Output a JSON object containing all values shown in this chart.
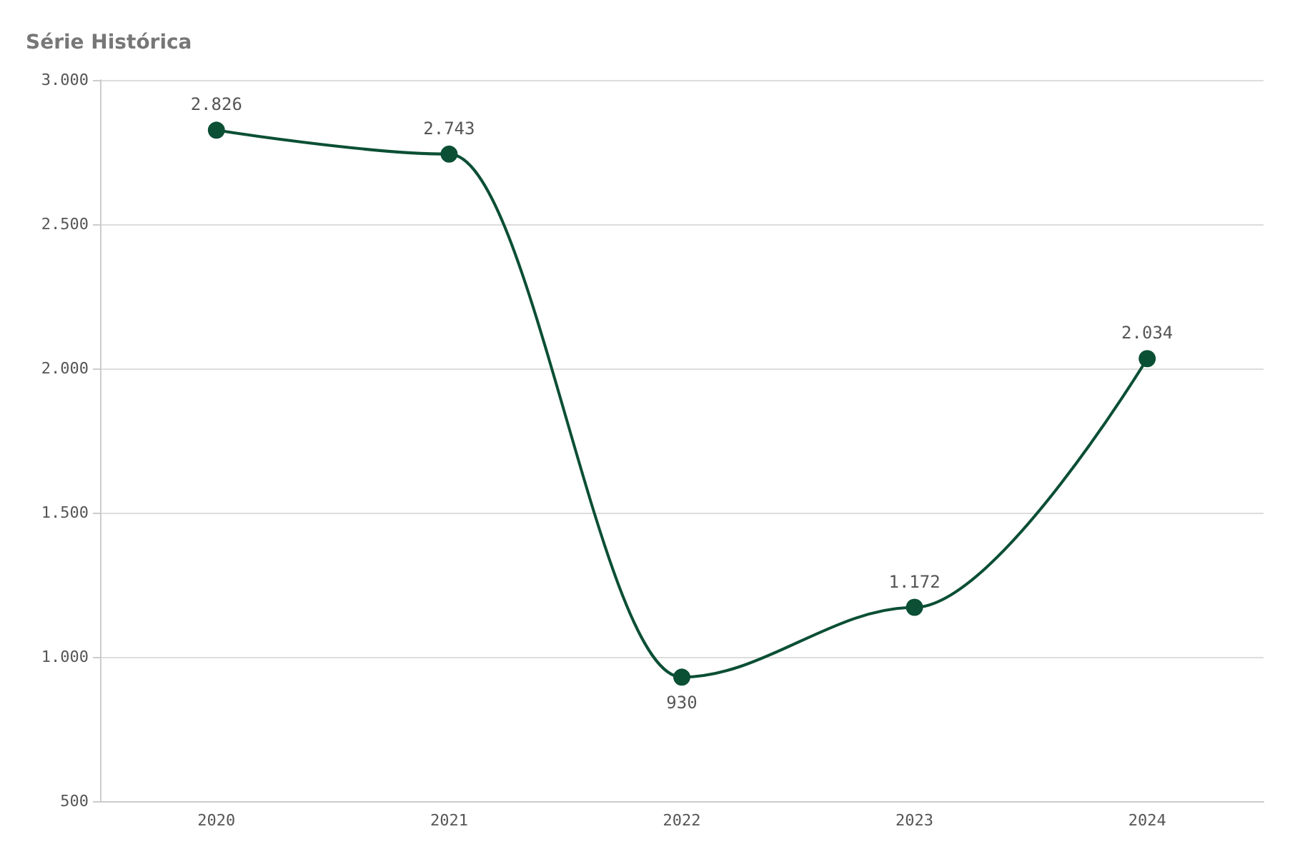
{
  "chart_data": {
    "type": "line",
    "title": "Série Histórica",
    "categories": [
      "2020",
      "2021",
      "2022",
      "2023",
      "2024"
    ],
    "series": [
      {
        "color": "#0b4f35",
        "values": [
          2826,
          2743,
          930,
          1172,
          2034
        ],
        "value_labels": [
          "2.826",
          "2.743",
          "930",
          "1.172",
          "2.034"
        ]
      }
    ],
    "ylim": [
      500,
      3000
    ],
    "yticks": [
      {
        "value": 500,
        "label": "500"
      },
      {
        "value": 1000,
        "label": "1.000"
      },
      {
        "value": 1500,
        "label": "1.500"
      },
      {
        "value": 2000,
        "label": "2.000"
      },
      {
        "value": 2500,
        "label": "2.500"
      },
      {
        "value": 3000,
        "label": "3.000"
      }
    ],
    "grid": "y",
    "marker": "circle",
    "line_style": "solid"
  }
}
